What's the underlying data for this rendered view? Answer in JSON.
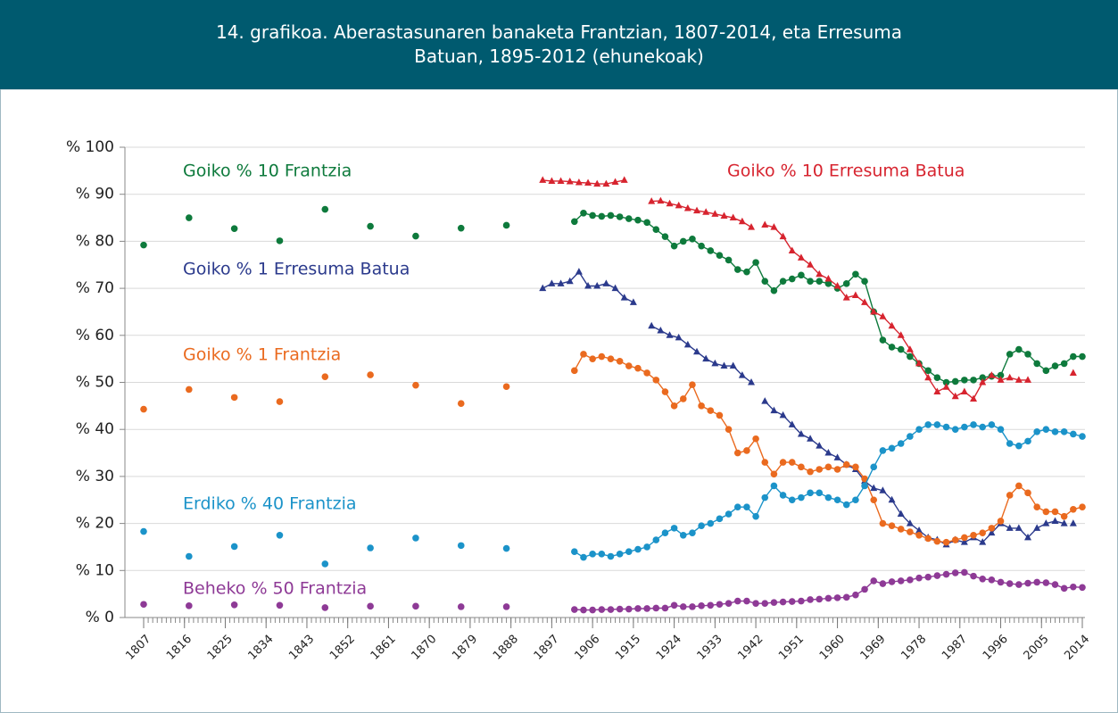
{
  "chart_data": {
    "type": "line",
    "title": "14. grafikoa. Aberastasunaren banaketa Frantzian, 1807-2014, eta Erresuma Batuan, 1895-2012 (ehunekoak)",
    "xlim": [
      1807,
      2014
    ],
    "xticks": [
      1807,
      1816,
      1825,
      1834,
      1843,
      1852,
      1861,
      1870,
      1879,
      1888,
      1897,
      1906,
      1915,
      1924,
      1933,
      1942,
      1951,
      1960,
      1969,
      1978,
      1987,
      1996,
      2005,
      2014
    ],
    "xminor_step": 1,
    "ylim": [
      0,
      100
    ],
    "yticks": [
      {
        "value": 0,
        "label": "% 0"
      },
      {
        "value": 10,
        "label": "% 10"
      },
      {
        "value": 20,
        "label": "% 20"
      },
      {
        "value": 30,
        "label": "% 30"
      },
      {
        "value": 40,
        "label": "% 40"
      },
      {
        "value": 50,
        "label": "% 50"
      },
      {
        "value": 60,
        "label": "% 60"
      },
      {
        "value": 70,
        "label": "% 70"
      },
      {
        "value": 80,
        "label": "% 80"
      },
      {
        "value": 90,
        "label": "% 90"
      },
      {
        "value": 100,
        "label": "% 100"
      }
    ],
    "grid": true,
    "series": [
      {
        "name": "Goiko % 10 Frantzia",
        "color": "#0e7a3c",
        "marker": "circle",
        "x": [
          1807,
          1812,
          1817,
          1822,
          1827,
          1832,
          1837,
          1842,
          1847,
          1852,
          1857,
          1862,
          1867,
          1872,
          1877,
          1882,
          1887,
          1895,
          1902,
          1904,
          1906,
          1908,
          1910,
          1912,
          1914,
          1916,
          1918,
          1920,
          1922,
          1924,
          1926,
          1928,
          1930,
          1932,
          1934,
          1936,
          1938,
          1940,
          1942,
          1944,
          1946,
          1948,
          1950,
          1952,
          1954,
          1956,
          1958,
          1960,
          1962,
          1964,
          1966,
          1968,
          1970,
          1972,
          1974,
          1976,
          1978,
          1980,
          1982,
          1984,
          1986,
          1988,
          1990,
          1992,
          1994,
          1996,
          1998,
          2000,
          2002,
          2004,
          2006,
          2008,
          2010,
          2012,
          2014
        ],
        "values": [
          79.2,
          null,
          85,
          null,
          82.7,
          null,
          80.1,
          null,
          86.8,
          null,
          83.2,
          null,
          81.1,
          null,
          82.8,
          null,
          83.4,
          null,
          84.2,
          86,
          85.5,
          85.3,
          85.5,
          85.2,
          84.8,
          84.5,
          84,
          82.5,
          81,
          79,
          80,
          80.5,
          79,
          78,
          77,
          76,
          74,
          73.5,
          75.5,
          71.5,
          69.5,
          71.5,
          72,
          72.8,
          71.5,
          71.5,
          71,
          70,
          71,
          73,
          71.5,
          65,
          59,
          57.5,
          57,
          55.5,
          54,
          52.5,
          51,
          50,
          50.2,
          50.5,
          50.5,
          51,
          51.3,
          51.5,
          56,
          57,
          56,
          54,
          52.5,
          53.5,
          54,
          55.5,
          55.5
        ]
      },
      {
        "name": "Goiko % 10 Erresuma Batua",
        "color": "#d7242f",
        "marker": "triangle",
        "x": [
          1895,
          1897,
          1899,
          1901,
          1903,
          1905,
          1907,
          1909,
          1911,
          1913,
          1916,
          1919,
          1921,
          1923,
          1925,
          1927,
          1929,
          1931,
          1933,
          1935,
          1937,
          1939,
          1941,
          1943,
          1944,
          1946,
          1948,
          1950,
          1952,
          1954,
          1956,
          1958,
          1960,
          1962,
          1964,
          1966,
          1968,
          1970,
          1972,
          1974,
          1976,
          1978,
          1980,
          1982,
          1984,
          1986,
          1988,
          1990,
          1992,
          1994,
          1996,
          1998,
          2000,
          2002,
          2007,
          2012
        ],
        "values": [
          93,
          92.8,
          92.8,
          92.7,
          92.5,
          92.4,
          92.2,
          92.2,
          92.6,
          93,
          null,
          88.5,
          88.6,
          88,
          87.6,
          87,
          86.5,
          86.2,
          85.8,
          85.4,
          85,
          84.2,
          83,
          null,
          83.5,
          83,
          81,
          78,
          76.5,
          75,
          73,
          72,
          70.5,
          68,
          68.5,
          67,
          65,
          64,
          62,
          60,
          57,
          54,
          51,
          48,
          49,
          47,
          48,
          46.5,
          50,
          51.5,
          50.5,
          51,
          50.5,
          50.5,
          null,
          52
        ]
      },
      {
        "name": "Goiko % 1 Erresuma Batua",
        "color": "#2b3a8c",
        "marker": "triangle",
        "x": [
          1895,
          1897,
          1899,
          1901,
          1903,
          1905,
          1907,
          1909,
          1911,
          1913,
          1915,
          1917,
          1919,
          1921,
          1923,
          1925,
          1927,
          1929,
          1931,
          1933,
          1935,
          1937,
          1939,
          1941,
          1943,
          1944,
          1946,
          1948,
          1950,
          1952,
          1954,
          1956,
          1958,
          1960,
          1962,
          1964,
          1966,
          1968,
          1970,
          1972,
          1974,
          1976,
          1978,
          1980,
          1982,
          1984,
          1986,
          1988,
          1990,
          1992,
          1994,
          1996,
          1998,
          2000,
          2002,
          2004,
          2006,
          2008,
          2010,
          2011,
          2012
        ],
        "values": [
          70,
          71,
          71,
          71.5,
          73.5,
          70.5,
          70.5,
          71,
          70,
          68,
          67,
          null,
          62,
          61,
          60,
          59.5,
          58,
          56.5,
          55,
          54,
          53.5,
          53.5,
          51.5,
          50,
          null,
          46,
          44,
          43,
          41,
          39,
          38,
          36.5,
          35,
          34,
          32.5,
          31.5,
          29,
          27.5,
          27,
          25,
          22,
          20,
          18.5,
          17,
          16.5,
          15.5,
          16.5,
          16,
          17,
          16,
          18,
          20,
          19,
          19,
          17,
          19,
          20,
          20.5,
          20,
          null,
          20
        ]
      },
      {
        "name": "Goiko % 1 Frantzia",
        "color": "#ea6a1f",
        "marker": "circle",
        "x": [
          1807,
          1812,
          1817,
          1822,
          1827,
          1832,
          1837,
          1842,
          1847,
          1852,
          1857,
          1862,
          1867,
          1872,
          1877,
          1882,
          1887,
          1895,
          1902,
          1904,
          1906,
          1908,
          1910,
          1912,
          1914,
          1916,
          1918,
          1920,
          1922,
          1924,
          1926,
          1928,
          1930,
          1932,
          1934,
          1936,
          1938,
          1940,
          1942,
          1944,
          1946,
          1948,
          1950,
          1952,
          1954,
          1956,
          1958,
          1960,
          1962,
          1964,
          1966,
          1968,
          1970,
          1972,
          1974,
          1976,
          1978,
          1980,
          1982,
          1984,
          1986,
          1988,
          1990,
          1992,
          1994,
          1996,
          1998,
          2000,
          2002,
          2004,
          2006,
          2008,
          2010,
          2012,
          2014
        ],
        "values": [
          44.3,
          null,
          48.5,
          null,
          46.8,
          null,
          45.9,
          null,
          51.2,
          null,
          51.6,
          null,
          49.4,
          null,
          45.5,
          null,
          49.1,
          null,
          52.5,
          56,
          55,
          55.5,
          55,
          54.5,
          53.5,
          53,
          52,
          50.5,
          48,
          45,
          46.5,
          49.5,
          45,
          44,
          43,
          40,
          35,
          35.5,
          38,
          33,
          30.5,
          33,
          33,
          32,
          31,
          31.5,
          32,
          31.5,
          32.5,
          32,
          29.5,
          25,
          20,
          19.5,
          18.8,
          18.2,
          17.5,
          16.8,
          16.2,
          16,
          16.5,
          17,
          17.5,
          18,
          19,
          20.5,
          26,
          28,
          26.5,
          23.5,
          22.5,
          22.5,
          21.5,
          23,
          23.5
        ]
      },
      {
        "name": "Erdiko % 40 Frantzia",
        "color": "#1b93c9",
        "marker": "circle",
        "x": [
          1807,
          1812,
          1817,
          1822,
          1827,
          1832,
          1837,
          1842,
          1847,
          1852,
          1857,
          1862,
          1867,
          1872,
          1877,
          1882,
          1887,
          1895,
          1902,
          1904,
          1906,
          1908,
          1910,
          1912,
          1914,
          1916,
          1918,
          1920,
          1922,
          1924,
          1926,
          1928,
          1930,
          1932,
          1934,
          1936,
          1938,
          1940,
          1942,
          1944,
          1946,
          1948,
          1950,
          1952,
          1954,
          1956,
          1958,
          1960,
          1962,
          1964,
          1966,
          1968,
          1970,
          1972,
          1974,
          1976,
          1978,
          1980,
          1982,
          1984,
          1986,
          1988,
          1990,
          1992,
          1994,
          1996,
          1998,
          2000,
          2002,
          2004,
          2006,
          2008,
          2010,
          2012,
          2014
        ],
        "values": [
          18.3,
          null,
          13,
          null,
          15.1,
          null,
          17.5,
          null,
          11.4,
          null,
          14.8,
          null,
          16.9,
          null,
          15.3,
          null,
          14.7,
          null,
          14,
          12.8,
          13.5,
          13.5,
          13,
          13.5,
          14,
          14.5,
          15,
          16.5,
          18,
          19,
          17.5,
          18,
          19.5,
          20,
          21,
          22,
          23.5,
          23.5,
          21.5,
          25.5,
          28,
          26,
          25,
          25.5,
          26.5,
          26.5,
          25.5,
          25,
          24,
          25,
          28,
          32,
          35.5,
          36,
          37,
          38.5,
          40,
          41,
          41,
          40.5,
          40,
          40.5,
          41,
          40.5,
          41,
          40,
          37,
          36.5,
          37.5,
          39.5,
          40,
          39.5,
          39.5,
          39,
          38.5
        ]
      },
      {
        "name": "Beheko % 50 Frantzia",
        "color": "#8e3a96",
        "marker": "circle",
        "x": [
          1807,
          1812,
          1817,
          1822,
          1827,
          1832,
          1837,
          1842,
          1847,
          1852,
          1857,
          1862,
          1867,
          1872,
          1877,
          1882,
          1887,
          1895,
          1902,
          1904,
          1906,
          1908,
          1910,
          1912,
          1914,
          1916,
          1918,
          1920,
          1922,
          1924,
          1926,
          1928,
          1930,
          1932,
          1934,
          1936,
          1938,
          1940,
          1942,
          1944,
          1946,
          1948,
          1950,
          1952,
          1954,
          1956,
          1958,
          1960,
          1962,
          1964,
          1966,
          1968,
          1970,
          1972,
          1974,
          1976,
          1978,
          1980,
          1982,
          1984,
          1986,
          1988,
          1990,
          1992,
          1994,
          1996,
          1998,
          2000,
          2002,
          2004,
          2006,
          2008,
          2010,
          2012,
          2014
        ],
        "values": [
          2.8,
          null,
          2.5,
          null,
          2.7,
          null,
          2.6,
          null,
          2.1,
          null,
          2.4,
          null,
          2.4,
          null,
          2.3,
          null,
          2.3,
          null,
          1.7,
          1.6,
          1.6,
          1.7,
          1.7,
          1.8,
          1.8,
          1.9,
          1.9,
          2,
          2,
          2.6,
          2.3,
          2.3,
          2.5,
          2.6,
          2.8,
          3,
          3.5,
          3.5,
          3,
          3,
          3.2,
          3.3,
          3.4,
          3.5,
          3.8,
          3.9,
          4.1,
          4.2,
          4.3,
          4.8,
          6,
          7.8,
          7.2,
          7.6,
          7.8,
          8,
          8.4,
          8.6,
          8.9,
          9.2,
          9.5,
          9.6,
          8.8,
          8.2,
          8,
          7.5,
          7.2,
          7,
          7.3,
          7.5,
          7.4,
          7,
          6.2,
          6.5,
          6.4
        ]
      }
    ]
  }
}
